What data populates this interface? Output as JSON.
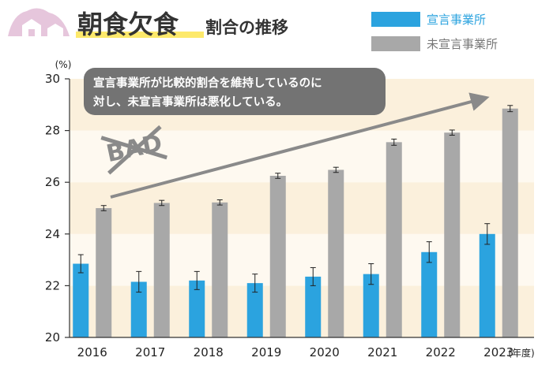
{
  "header": {
    "title_main": "朝食欠食",
    "title_sub": "割合の推移"
  },
  "legend": [
    {
      "label": "宣言事業所",
      "color": "#2ba3df"
    },
    {
      "label": "未宣言事業所",
      "color": "#a8a8a8"
    }
  ],
  "callout": {
    "lines": [
      "宣言事業所が比較的割合を維持しているのに",
      "対し、未宣言事業所は悪化している。"
    ],
    "stamp": "BAD"
  },
  "icons": [
    "house-icon"
  ],
  "chart_data": {
    "type": "bar",
    "categories": [
      "2016",
      "2017",
      "2018",
      "2019",
      "2020",
      "2021",
      "2022",
      "2023"
    ],
    "series": [
      {
        "name": "宣言事業所",
        "color": "#2ba3df",
        "values": [
          22.85,
          22.15,
          22.2,
          22.1,
          22.35,
          22.45,
          23.3,
          24.0
        ],
        "error": [
          0.35,
          0.4,
          0.35,
          0.35,
          0.35,
          0.4,
          0.4,
          0.4
        ]
      },
      {
        "name": "未宣言事業所",
        "color": "#a8a8a8",
        "values": [
          25.0,
          25.2,
          25.22,
          26.25,
          26.48,
          27.55,
          27.92,
          28.85
        ],
        "error": [
          0.1,
          0.1,
          0.1,
          0.1,
          0.1,
          0.12,
          0.1,
          0.12
        ]
      }
    ],
    "ylim": [
      20,
      30
    ],
    "yticks": [
      20,
      22,
      24,
      26,
      28,
      30
    ],
    "y_unit": "(%)",
    "x_unit": "(年度)",
    "band_colors": [
      "#fbf0dc",
      "#fef9f0"
    ]
  }
}
